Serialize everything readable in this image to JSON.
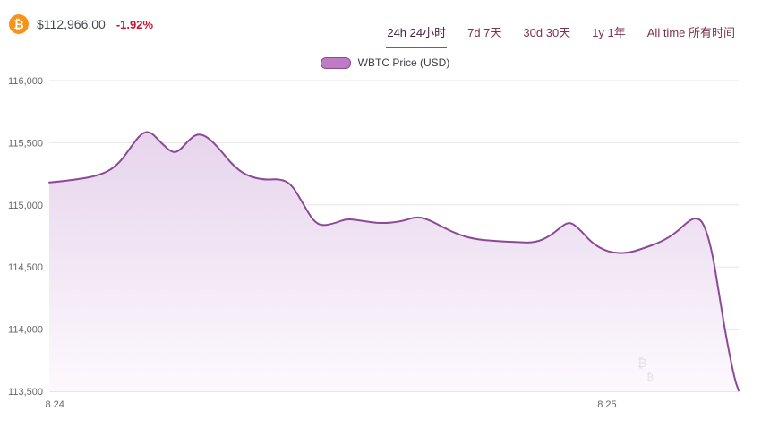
{
  "header": {
    "price": "$112,966.00",
    "change": "-1.92%"
  },
  "icons": {
    "bitcoin_glyph": "₿",
    "watermark_glyph": "₿"
  },
  "colors": {
    "accent_purple": "#8b4a96",
    "area_top": "#e3cde9",
    "area_bottom": "#fcf9fd",
    "change_red": "#cc1133",
    "bitcoin_orange": "#f7931a",
    "tab_text": "#7d3150",
    "axis_label": "#666666",
    "gridline": "#e6e6e6",
    "axis_line": "#cccccc"
  },
  "tabs": [
    {
      "id": "24h",
      "label": "24h 24小时",
      "active": true
    },
    {
      "id": "7d",
      "label": "7d 7天",
      "active": false
    },
    {
      "id": "30d",
      "label": "30d 30天",
      "active": false
    },
    {
      "id": "1y",
      "label": "1y 1年",
      "active": false
    },
    {
      "id": "all-time",
      "label": "All time 所有时间",
      "active": false
    }
  ],
  "legend": {
    "label": "WBTC Price (USD)"
  },
  "chart_data": {
    "type": "area",
    "title": "",
    "xlabel": "",
    "ylabel": "",
    "series_name": "WBTC Price (USD)",
    "legend_position": "top-center",
    "grid": "horizontal",
    "ylim": [
      113500,
      116000
    ],
    "y_ticks": [
      {
        "label": "116,000",
        "value": 116000
      },
      {
        "label": "115,500",
        "value": 115500
      },
      {
        "label": "115,000",
        "value": 115000
      },
      {
        "label": "114,500",
        "value": 114500
      },
      {
        "label": "114,000",
        "value": 114000
      },
      {
        "label": "113,500",
        "value": 113500
      }
    ],
    "x_ticks": [
      {
        "label": "8 24",
        "pos": 0.008
      },
      {
        "label": "8 25",
        "pos": 0.809
      }
    ],
    "points": [
      [
        0.0,
        115180
      ],
      [
        0.039,
        115200
      ],
      [
        0.078,
        115245
      ],
      [
        0.101,
        115330
      ],
      [
        0.119,
        115470
      ],
      [
        0.134,
        115580
      ],
      [
        0.147,
        115590
      ],
      [
        0.162,
        115500
      ],
      [
        0.178,
        115420
      ],
      [
        0.188,
        115430
      ],
      [
        0.204,
        115530
      ],
      [
        0.216,
        115575
      ],
      [
        0.23,
        115545
      ],
      [
        0.247,
        115450
      ],
      [
        0.266,
        115320
      ],
      [
        0.286,
        115235
      ],
      [
        0.312,
        115200
      ],
      [
        0.334,
        115210
      ],
      [
        0.351,
        115170
      ],
      [
        0.368,
        115010
      ],
      [
        0.383,
        114870
      ],
      [
        0.396,
        114830
      ],
      [
        0.416,
        114855
      ],
      [
        0.432,
        114890
      ],
      [
        0.455,
        114870
      ],
      [
        0.481,
        114850
      ],
      [
        0.51,
        114865
      ],
      [
        0.532,
        114905
      ],
      [
        0.549,
        114885
      ],
      [
        0.571,
        114820
      ],
      [
        0.594,
        114760
      ],
      [
        0.617,
        114725
      ],
      [
        0.645,
        114710
      ],
      [
        0.675,
        114700
      ],
      [
        0.705,
        114695
      ],
      [
        0.727,
        114750
      ],
      [
        0.747,
        114845
      ],
      [
        0.757,
        114860
      ],
      [
        0.77,
        114800
      ],
      [
        0.786,
        114700
      ],
      [
        0.803,
        114640
      ],
      [
        0.822,
        114610
      ],
      [
        0.842,
        114615
      ],
      [
        0.864,
        114655
      ],
      [
        0.887,
        114700
      ],
      [
        0.909,
        114775
      ],
      [
        0.926,
        114865
      ],
      [
        0.938,
        114900
      ],
      [
        0.949,
        114860
      ],
      [
        0.961,
        114640
      ],
      [
        0.971,
        114300
      ],
      [
        0.983,
        113900
      ],
      [
        0.994,
        113600
      ],
      [
        1.0,
        113505
      ]
    ]
  }
}
